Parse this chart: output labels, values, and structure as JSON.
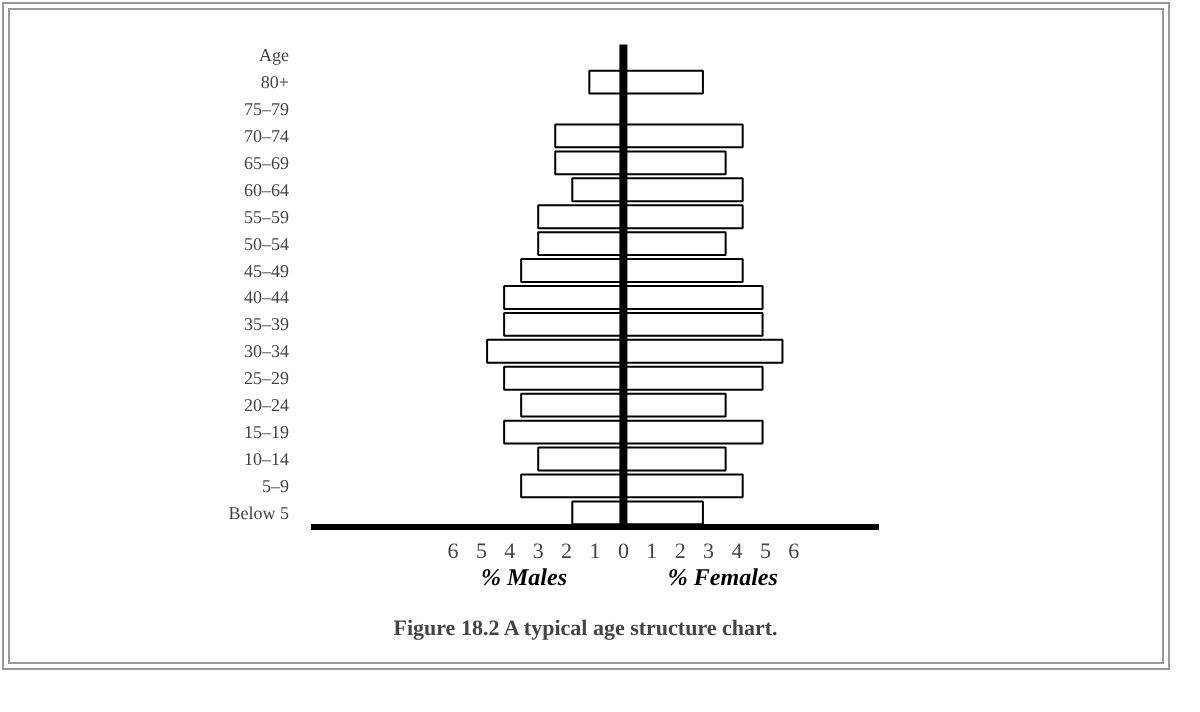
{
  "chart_data": {
    "type": "bar",
    "orientation": "horizontal",
    "title": "Figure 18.2    A typical age structure chart.",
    "ylabel": "Age",
    "categories": [
      "80+",
      "75–79",
      "70–74",
      "65–69",
      "60–64",
      "55–59",
      "50–54",
      "45–49",
      "40–44",
      "35–39",
      "30–34",
      "25–29",
      "20–24",
      "15–19",
      "10–14",
      "5–9",
      "Below 5"
    ],
    "series": [
      {
        "name": "% Males",
        "color": "#ffffff",
        "values": [
          -1.2,
          null,
          -2.4,
          -2.4,
          -1.8,
          -3.0,
          -3.0,
          -3.6,
          -4.2,
          -4.2,
          -4.8,
          -4.2,
          -3.6,
          -4.2,
          -3.0,
          -3.6,
          -1.8
        ]
      },
      {
        "name": "% Females",
        "color": "#ffffff",
        "values": [
          2.8,
          null,
          4.2,
          3.6,
          4.2,
          4.2,
          3.6,
          4.2,
          4.9,
          4.9,
          5.6,
          4.9,
          3.6,
          4.9,
          3.6,
          4.2,
          2.8
        ]
      }
    ],
    "xlim": [
      -11,
      9
    ],
    "xticks": [
      {
        "value": -6,
        "label": "6"
      },
      {
        "value": -5,
        "label": "5"
      },
      {
        "value": -4,
        "label": "4"
      },
      {
        "value": -3,
        "label": "3"
      },
      {
        "value": -2,
        "label": "2"
      },
      {
        "value": -1,
        "label": "1"
      },
      0,
      1,
      2,
      3,
      4,
      5,
      6
    ],
    "stacked": true,
    "grid": false,
    "legend": false,
    "ref_lines": [
      {
        "axis": "x",
        "value": 0
      }
    ]
  }
}
